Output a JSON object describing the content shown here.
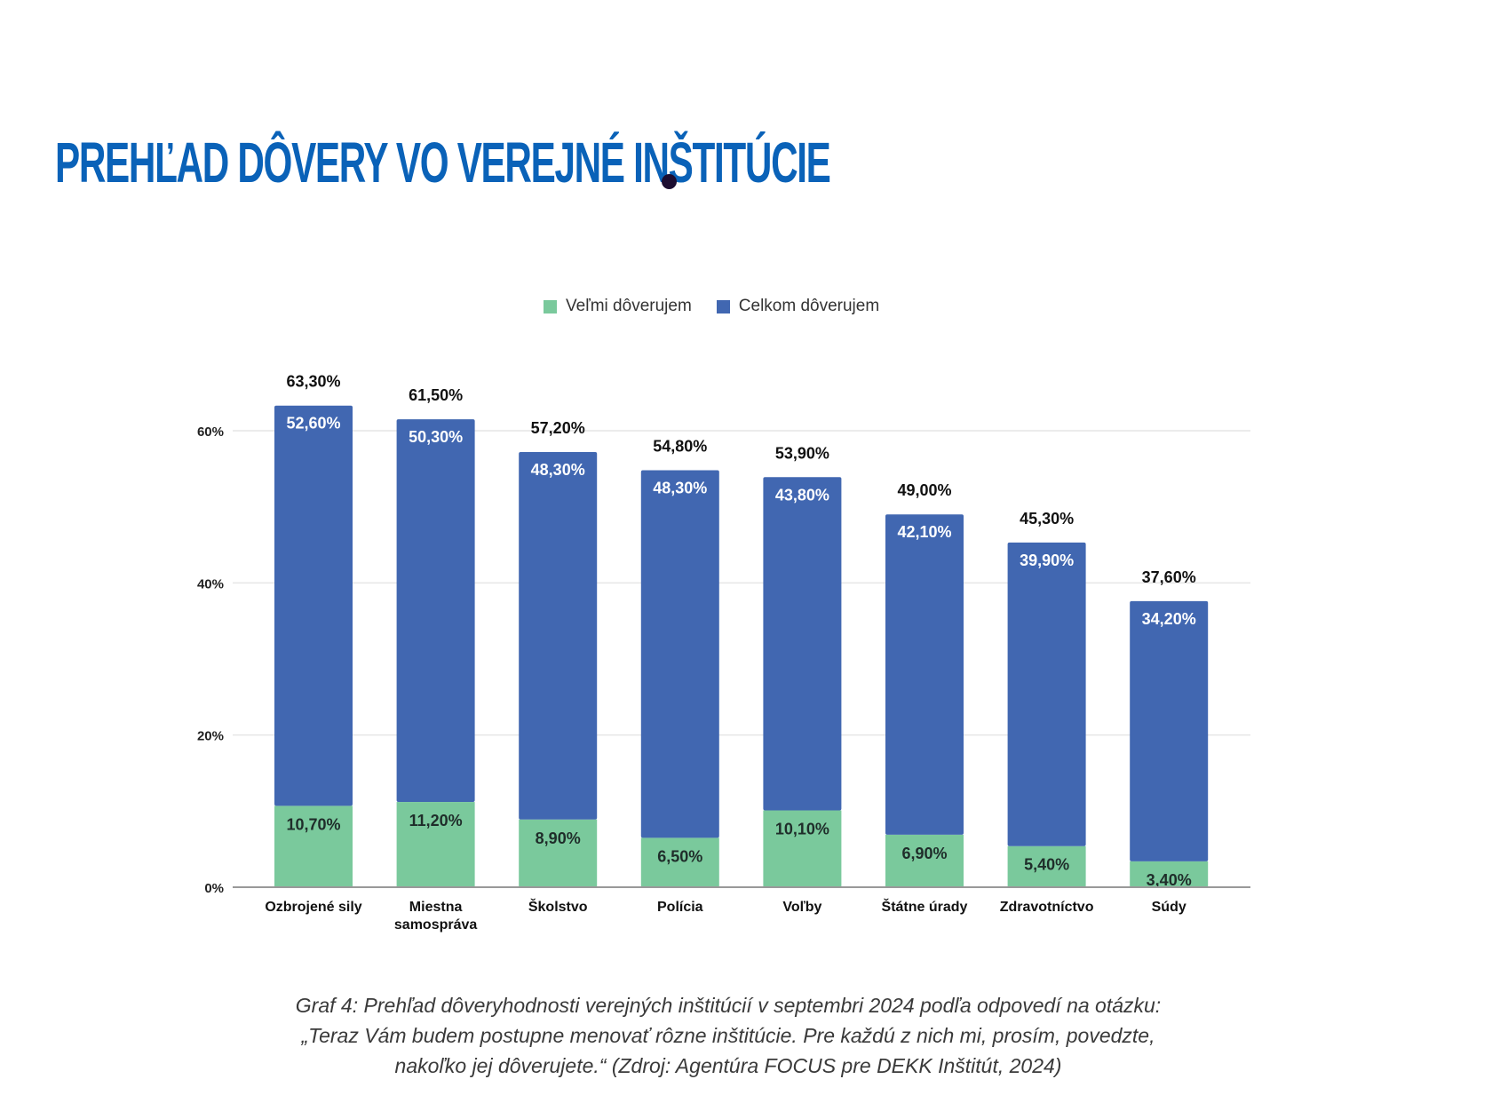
{
  "header": {
    "title": "PREHĽAD DÔVERY VO VEREJNÉ INŠTITÚCIE"
  },
  "caption": {
    "line1": "Graf 4: Prehľad dôveryhodnosti verejných inštitúcií v septembri 2024 podľa odpovedí na otázku:",
    "line2": "„Teraz Vám budem postupne menovať rôzne inštitúcie. Pre každú z nich mi, prosím, povedzte,",
    "line3": "nakoľko jej dôverujete.“ (Zdroj: Agentúra FOCUS pre DEKK Inštitút, 2024)"
  },
  "colors": {
    "title": "#0a62b8",
    "series_green": "#7ac99c",
    "series_blue": "#4167b1",
    "grid": "#e6e6e6",
    "axis": "#999999"
  },
  "chart_data": {
    "type": "bar",
    "stacked": true,
    "categories": [
      [
        "Ozbrojené sily"
      ],
      [
        "Miestna",
        "samospráva"
      ],
      [
        "Školstvo"
      ],
      [
        "Polícia"
      ],
      [
        "Voľby"
      ],
      [
        "Štátne úrady"
      ],
      [
        "Zdravotníctvo"
      ],
      [
        "Súdy"
      ]
    ],
    "series": [
      {
        "name": "Veľmi dôverujem",
        "color": "#7ac99c",
        "values": [
          10.7,
          11.2,
          8.9,
          6.5,
          10.1,
          6.9,
          5.4,
          3.4
        ],
        "labels": [
          "10,70%",
          "11,20%",
          "8,90%",
          "6,50%",
          "10,10%",
          "6,90%",
          "5,40%",
          "3,40%"
        ]
      },
      {
        "name": "Celkom dôverujem",
        "color": "#4167b1",
        "values": [
          52.6,
          50.3,
          48.3,
          48.3,
          43.8,
          42.1,
          39.9,
          34.2
        ],
        "labels": [
          "52,60%",
          "50,30%",
          "48,30%",
          "48,30%",
          "43,80%",
          "42,10%",
          "39,90%",
          "34,20%"
        ]
      }
    ],
    "totals": [
      63.3,
      61.5,
      57.2,
      54.8,
      53.9,
      49.0,
      45.3,
      37.6
    ],
    "total_labels": [
      "63,30%",
      "61,50%",
      "57,20%",
      "54,80%",
      "53,90%",
      "49,00%",
      "45,30%",
      "37,60%"
    ],
    "yticks": [
      "0%",
      "20%",
      "40%",
      "60%"
    ],
    "ytick_values": [
      0,
      20,
      40,
      60
    ],
    "ylim": [
      0,
      60
    ],
    "grid": true,
    "legend": "top-center",
    "title": "",
    "xlabel": "",
    "ylabel": ""
  }
}
